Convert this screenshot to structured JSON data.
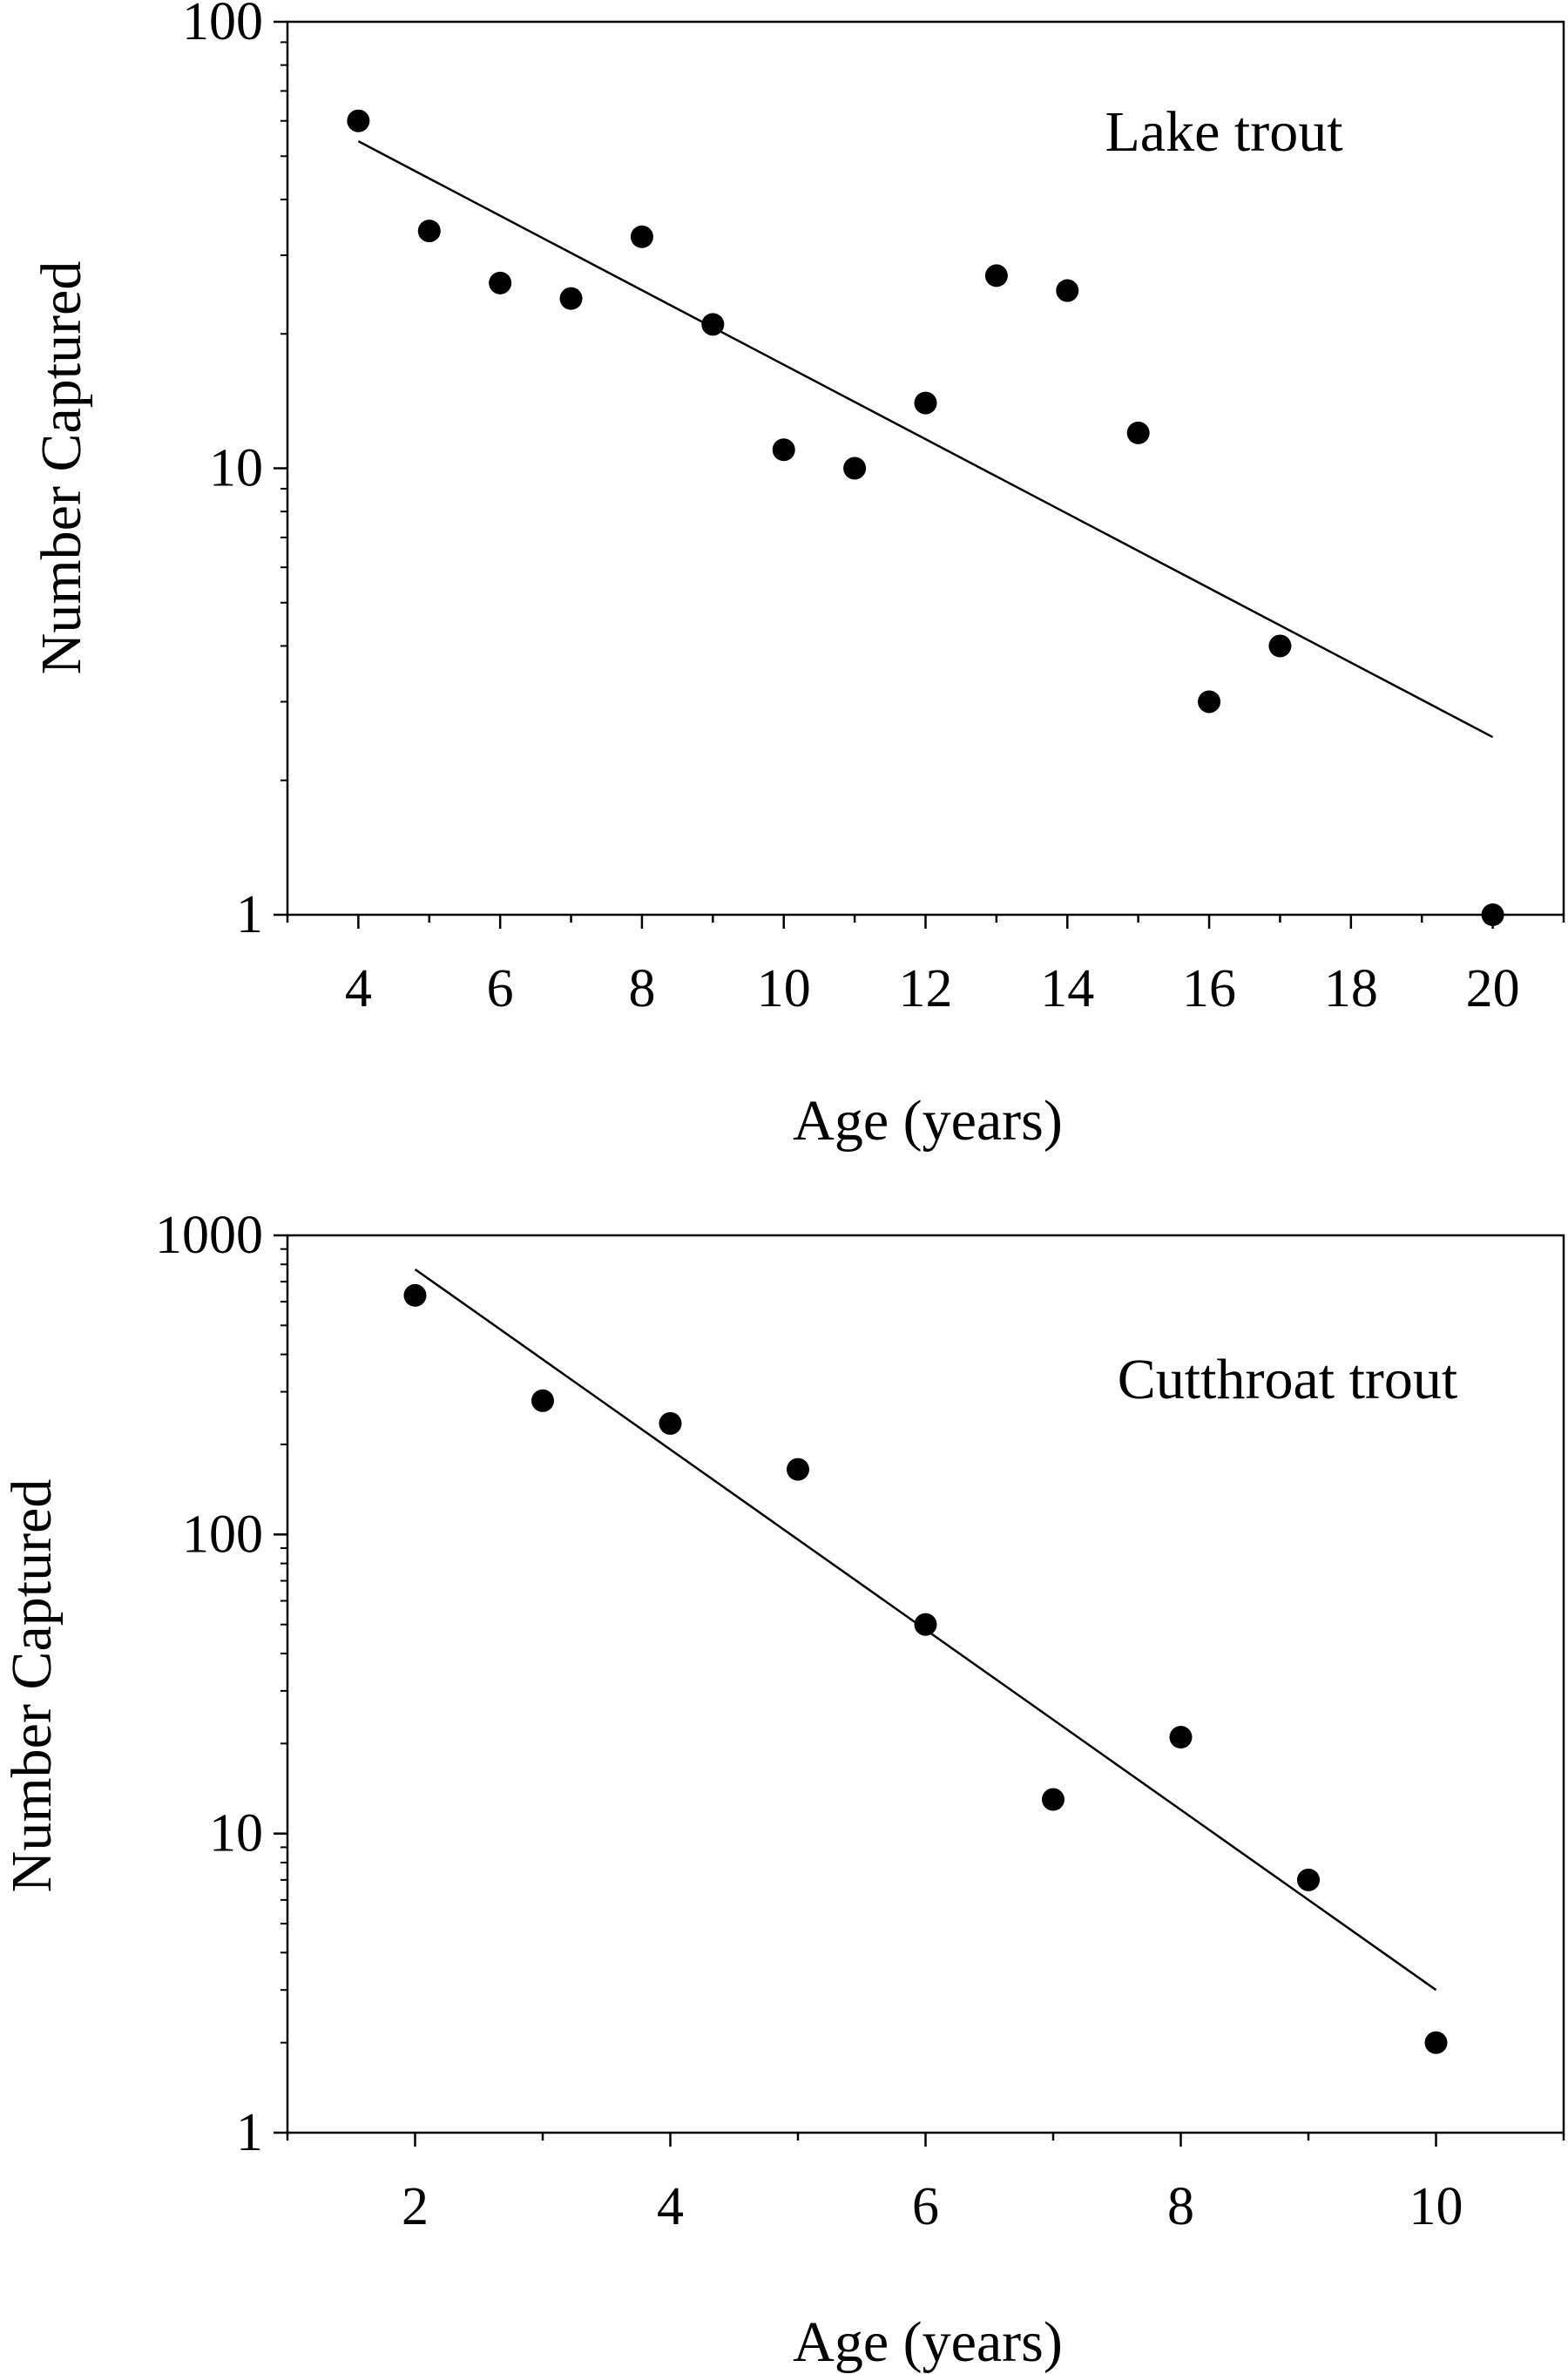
{
  "chart_data": [
    {
      "type": "scatter",
      "yscale": "log",
      "xlabel": "Age (years)",
      "ylabel": "Number Captured",
      "annotation": "Lake trout",
      "xlim": [
        3,
        21
      ],
      "ylim": [
        1,
        100
      ],
      "xticks": [
        4,
        6,
        8,
        10,
        12,
        14,
        16,
        18,
        20
      ],
      "xtick_labels": [
        "4",
        "6",
        "8",
        "10",
        "12",
        "14",
        "16",
        "18",
        "20"
      ],
      "yticks": [
        1,
        10,
        100
      ],
      "ytick_labels": [
        "1",
        "10",
        "100"
      ],
      "grid": false,
      "series": [
        {
          "points": [
            {
              "x": 4,
              "y": 60
            },
            {
              "x": 5,
              "y": 34
            },
            {
              "x": 6,
              "y": 26
            },
            {
              "x": 7,
              "y": 24
            },
            {
              "x": 8,
              "y": 33
            },
            {
              "x": 9,
              "y": 21
            },
            {
              "x": 10,
              "y": 11
            },
            {
              "x": 11,
              "y": 10
            },
            {
              "x": 12,
              "y": 14
            },
            {
              "x": 13,
              "y": 27
            },
            {
              "x": 14,
              "y": 25
            },
            {
              "x": 15,
              "y": 12
            },
            {
              "x": 16,
              "y": 3
            },
            {
              "x": 17,
              "y": 4
            },
            {
              "x": 20,
              "y": 1
            }
          ]
        }
      ],
      "trend_line": {
        "x": [
          4,
          20
        ],
        "y": [
          54,
          2.5
        ]
      }
    },
    {
      "type": "scatter",
      "yscale": "log",
      "xlabel": "Age (years)",
      "ylabel": "Number Captured",
      "annotation": "Cutthroat trout",
      "xlim": [
        1,
        11
      ],
      "ylim": [
        1,
        1000
      ],
      "xticks": [
        2,
        4,
        6,
        8,
        10
      ],
      "xtick_labels": [
        "2",
        "4",
        "6",
        "8",
        "10"
      ],
      "yticks": [
        1,
        10,
        100,
        1000
      ],
      "ytick_labels": [
        "1",
        "10",
        "100",
        "1000"
      ],
      "grid": false,
      "series": [
        {
          "points": [
            {
              "x": 2,
              "y": 630
            },
            {
              "x": 3,
              "y": 280
            },
            {
              "x": 4,
              "y": 235
            },
            {
              "x": 5,
              "y": 165
            },
            {
              "x": 6,
              "y": 50
            },
            {
              "x": 7,
              "y": 13
            },
            {
              "x": 8,
              "y": 21
            },
            {
              "x": 9,
              "y": 7
            },
            {
              "x": 10,
              "y": 2
            }
          ]
        }
      ],
      "trend_line": {
        "x": [
          2,
          10
        ],
        "y": [
          770,
          3
        ]
      }
    }
  ]
}
